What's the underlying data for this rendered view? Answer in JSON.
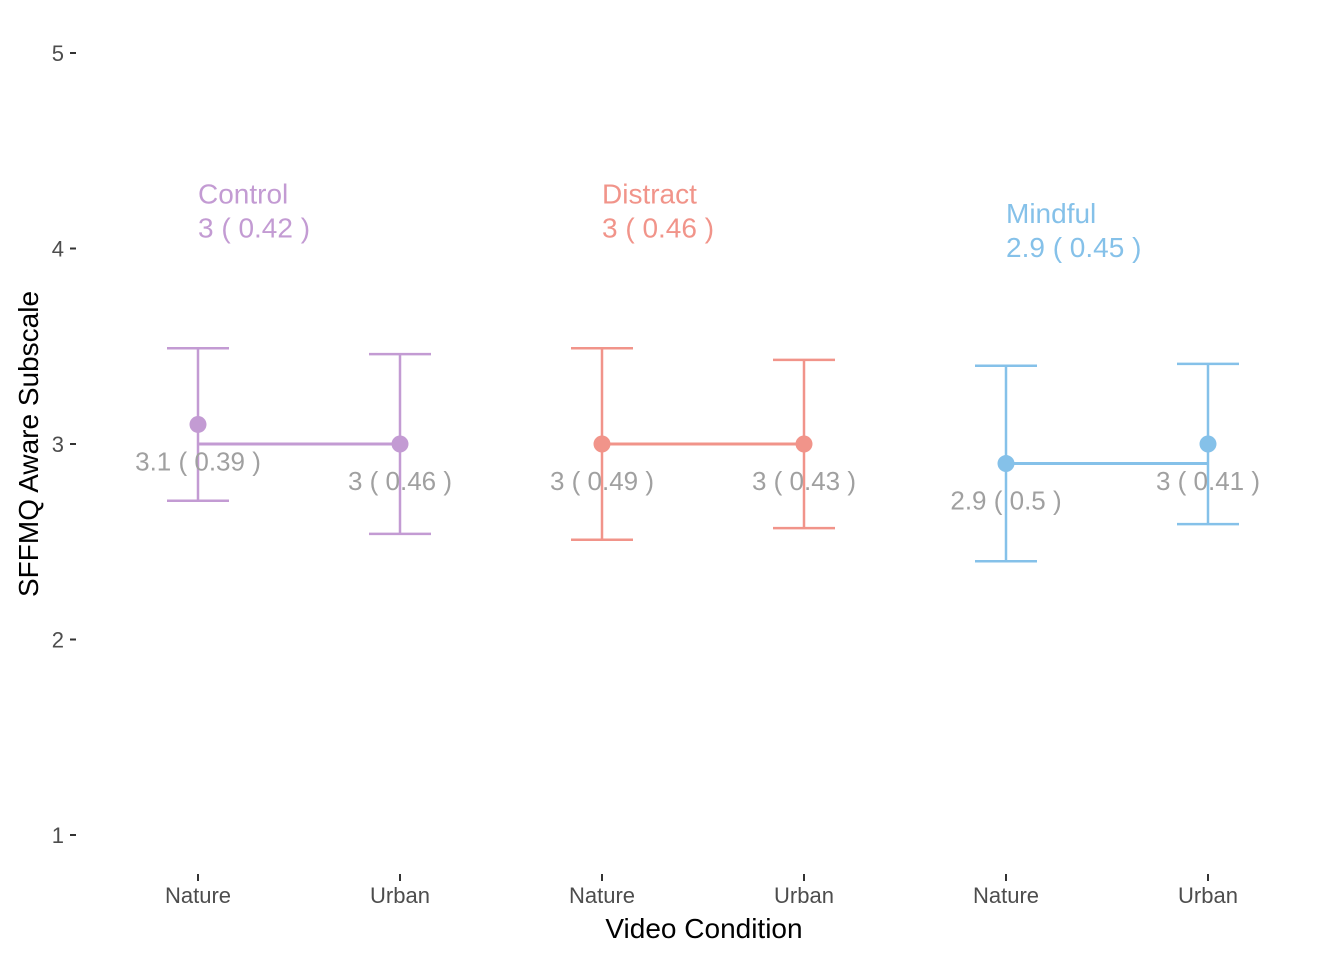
{
  "chart_data": {
    "type": "line",
    "title": "",
    "xlabel": "Video Condition",
    "ylabel": "SFFMQ Aware Subscale",
    "ylim": [
      1,
      5
    ],
    "yticks": [
      1,
      2,
      3,
      4,
      5
    ],
    "grid": false,
    "legend": "none",
    "x_categories": [
      "Nature",
      "Urban",
      "Nature",
      "Urban",
      "Nature",
      "Urban"
    ],
    "groups": [
      {
        "name": "Control",
        "color": "#C39BD3",
        "summary_label": "3  ( 0.42 )",
        "summary_value": 3,
        "summary_sd": 0.42,
        "points": [
          {
            "condition": "Nature",
            "mean": 3.1,
            "sd": 0.39,
            "lower": 2.71,
            "upper": 3.49,
            "label": "3.1  ( 0.39 )"
          },
          {
            "condition": "Urban",
            "mean": 3.0,
            "sd": 0.46,
            "lower": 2.54,
            "upper": 3.46,
            "label": "3  ( 0.46 )"
          }
        ]
      },
      {
        "name": "Distract",
        "color": "#F1948A",
        "summary_label": "3  ( 0.46 )",
        "summary_value": 3,
        "summary_sd": 0.46,
        "points": [
          {
            "condition": "Nature",
            "mean": 3.0,
            "sd": 0.49,
            "lower": 2.51,
            "upper": 3.49,
            "label": "3  ( 0.49 )"
          },
          {
            "condition": "Urban",
            "mean": 3.0,
            "sd": 0.43,
            "lower": 2.57,
            "upper": 3.43,
            "label": "3  ( 0.43 )"
          }
        ]
      },
      {
        "name": "Mindful",
        "color": "#85C1E9",
        "summary_label": "2.9  ( 0.45 )",
        "summary_value": 2.9,
        "summary_sd": 0.45,
        "points": [
          {
            "condition": "Nature",
            "mean": 2.9,
            "sd": 0.5,
            "lower": 2.4,
            "upper": 3.4,
            "label": "2.9  ( 0.5 )"
          },
          {
            "condition": "Urban",
            "mean": 3.0,
            "sd": 0.41,
            "lower": 2.59,
            "upper": 3.41,
            "label": "3  ( 0.41 )"
          }
        ]
      }
    ]
  }
}
